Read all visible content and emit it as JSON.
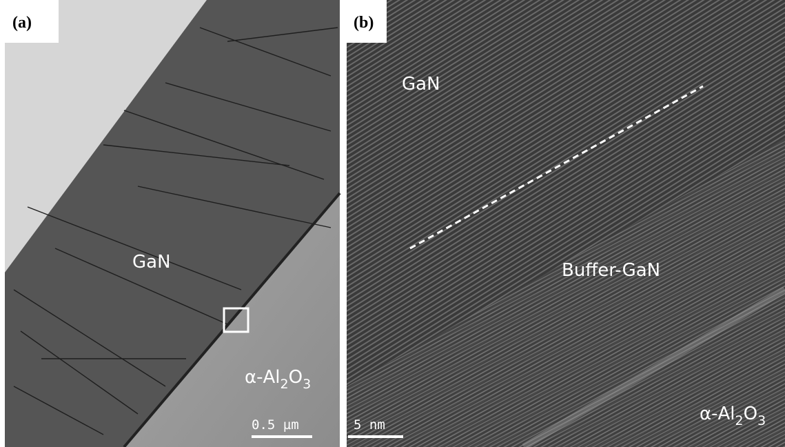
{
  "panels": [
    {
      "label": "(a)",
      "regions": [
        "GaN"
      ],
      "substrate": [
        "α-Al",
        "2",
        "O",
        "3"
      ],
      "scale_bar": "0.5 µm"
    },
    {
      "label": "(b)",
      "regions": [
        "GaN",
        "Buffer-GaN"
      ],
      "substrate": [
        "α-Al",
        "2",
        "O",
        "3"
      ],
      "scale_bar": "5 nm"
    }
  ]
}
